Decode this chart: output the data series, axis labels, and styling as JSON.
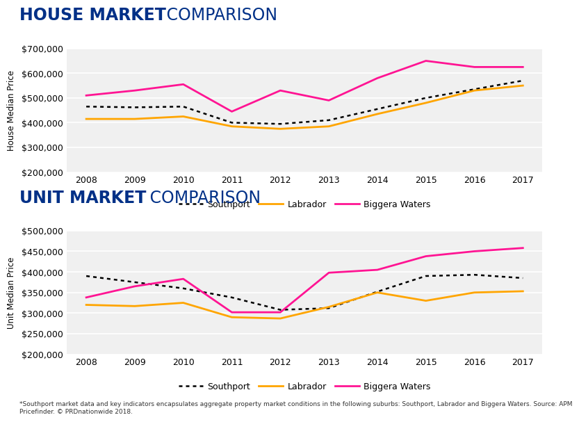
{
  "years": [
    2008,
    2009,
    2010,
    2011,
    2012,
    2013,
    2014,
    2015,
    2016,
    2017
  ],
  "house": {
    "southport": [
      465000,
      462000,
      465000,
      400000,
      395000,
      410000,
      455000,
      500000,
      535000,
      570000
    ],
    "labrador": [
      415000,
      415000,
      425000,
      385000,
      375000,
      385000,
      435000,
      480000,
      530000,
      550000
    ],
    "biggera": [
      510000,
      530000,
      555000,
      445000,
      530000,
      490000,
      580000,
      650000,
      625000,
      625000
    ]
  },
  "unit": {
    "southport": [
      390000,
      375000,
      360000,
      338000,
      308000,
      312000,
      352000,
      390000,
      393000,
      385000
    ],
    "labrador": [
      320000,
      317000,
      325000,
      290000,
      287000,
      315000,
      350000,
      330000,
      350000,
      353000
    ],
    "biggera": [
      338000,
      365000,
      383000,
      302000,
      302000,
      398000,
      405000,
      438000,
      450000,
      458000
    ]
  },
  "colors": {
    "southport": "#000000",
    "labrador": "#FFA500",
    "biggera": "#FF1493"
  },
  "title1_bold": "HOUSE MARKET",
  "title1_rest": " COMPARISON",
  "title2_bold": "UNIT MARKET",
  "title2_rest": " COMPARISON",
  "ylabel1": "House Median Price",
  "ylabel2": "Unit Median Price",
  "ylim1": [
    200000,
    700000
  ],
  "ylim2": [
    200000,
    500000
  ],
  "yticks1": [
    200000,
    300000,
    400000,
    500000,
    600000,
    700000
  ],
  "yticks2": [
    200000,
    250000,
    300000,
    350000,
    400000,
    450000,
    500000
  ],
  "footnote": "*Southport market data and key indicators encapsulates aggregate property market conditions in the following suburbs: Southport, Labrador and Biggera Waters. Source: APM\nPricefinder. © PRDnationwide 2018.",
  "bg_color": "#f0f0f0",
  "title_navy": "#003087",
  "grid_color": "#ffffff"
}
